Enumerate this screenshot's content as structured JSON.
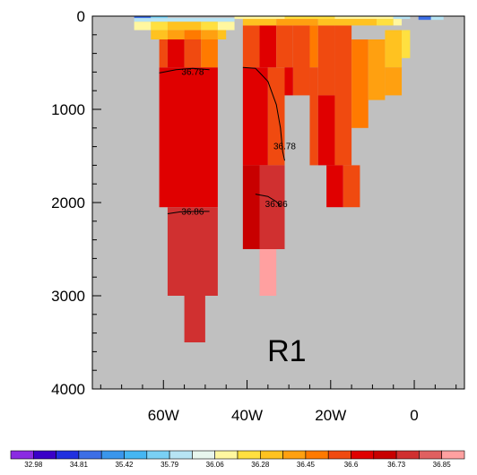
{
  "chart_data": {
    "type": "heatmap",
    "panel_label": "R1",
    "x_axis": {
      "range": [
        -77,
        12
      ],
      "ticks": [
        -60,
        -40,
        -20,
        0
      ],
      "tick_labels": [
        "60W",
        "40W",
        "20W",
        "0"
      ],
      "minor_step": 5
    },
    "y_axis": {
      "range": [
        0,
        4000
      ],
      "inverted": true,
      "ticks": [
        0,
        1000,
        2000,
        3000,
        4000
      ],
      "tick_labels": [
        "0",
        "1000",
        "2000",
        "3000",
        "4000"
      ],
      "minor_step": 200
    },
    "missing_color": "#c0c0c0",
    "gridlines": false,
    "colorbar": {
      "placement": "bottom",
      "colors": [
        "#8a2be2",
        "#3a00c8",
        "#2030e0",
        "#3c6ee6",
        "#3a96ec",
        "#45b6f2",
        "#7ad0f4",
        "#b7e4f4",
        "#e8f6ee",
        "#fff7a0",
        "#ffe040",
        "#ffc220",
        "#ffa010",
        "#ff7a00",
        "#f04a10",
        "#e00000",
        "#c80000",
        "#d03030",
        "#e06060",
        "#ffa0a0"
      ],
      "labels": [
        "32.98",
        "34.81",
        "35.42",
        "35.79",
        "36.06",
        "36.28",
        "36.45",
        "36.6",
        "36.73",
        "36.85"
      ]
    },
    "cells": [
      {
        "x0": -61,
        "x1": -47,
        "y0": 550,
        "y1": 2050,
        "color": "#e00000"
      },
      {
        "x0": -61,
        "x1": -59,
        "y0": 250,
        "y1": 550,
        "color": "#f04a10"
      },
      {
        "x0": -59,
        "x1": -55,
        "y0": 250,
        "y1": 550,
        "color": "#e00000"
      },
      {
        "x0": -55,
        "x1": -51,
        "y0": 250,
        "y1": 550,
        "color": "#f04a10"
      },
      {
        "x0": -51,
        "x1": -47,
        "y0": 250,
        "y1": 550,
        "color": "#ff7a00"
      },
      {
        "x0": -59,
        "x1": -47,
        "y0": 2050,
        "y1": 3000,
        "color": "#d03030"
      },
      {
        "x0": -55,
        "x1": -50,
        "y0": 3000,
        "y1": 3500,
        "color": "#d03030"
      },
      {
        "x0": -67,
        "x1": -43,
        "y0": 20,
        "y1": 60,
        "color": "#b7e4f4"
      },
      {
        "x0": -67,
        "x1": -63,
        "y0": 0,
        "y1": 20,
        "color": "#3c6ee6"
      },
      {
        "x0": -63,
        "x1": -59,
        "y0": 0,
        "y1": 20,
        "color": "#7ad0f4"
      },
      {
        "x0": -67,
        "x1": -63,
        "y0": 60,
        "y1": 150,
        "color": "#fff7a0"
      },
      {
        "x0": -63,
        "x1": -59,
        "y0": 60,
        "y1": 150,
        "color": "#ffe040"
      },
      {
        "x0": -59,
        "x1": -51,
        "y0": 60,
        "y1": 150,
        "color": "#ffc220"
      },
      {
        "x0": -51,
        "x1": -47,
        "y0": 60,
        "y1": 150,
        "color": "#ffe040"
      },
      {
        "x0": -47,
        "x1": -43,
        "y0": 60,
        "y1": 150,
        "color": "#fff7a0"
      },
      {
        "x0": -63,
        "x1": -59,
        "y0": 150,
        "y1": 250,
        "color": "#ffc220"
      },
      {
        "x0": -59,
        "x1": -55,
        "y0": 150,
        "y1": 250,
        "color": "#ffa010"
      },
      {
        "x0": -55,
        "x1": -51,
        "y0": 150,
        "y1": 250,
        "color": "#ff7a00"
      },
      {
        "x0": -51,
        "x1": -47,
        "y0": 150,
        "y1": 250,
        "color": "#ffa010"
      },
      {
        "x0": -47,
        "x1": -45,
        "y0": 150,
        "y1": 250,
        "color": "#ffc220"
      },
      {
        "x0": -41,
        "x1": -35,
        "y0": 550,
        "y1": 1600,
        "color": "#e00000"
      },
      {
        "x0": -35,
        "x1": -31,
        "y0": 550,
        "y1": 1600,
        "color": "#f04a10"
      },
      {
        "x0": -41,
        "x1": -37,
        "y0": 100,
        "y1": 550,
        "color": "#f04a10"
      },
      {
        "x0": -37,
        "x1": -33,
        "y0": 100,
        "y1": 550,
        "color": "#e00000"
      },
      {
        "x0": -33,
        "x1": -29,
        "y0": 100,
        "y1": 550,
        "color": "#f04a10"
      },
      {
        "x0": -29,
        "x1": -25,
        "y0": 100,
        "y1": 850,
        "color": "#f04a10"
      },
      {
        "x0": -25,
        "x1": -23,
        "y0": 100,
        "y1": 550,
        "color": "#ff7a00"
      },
      {
        "x0": -31,
        "x1": -29,
        "y0": 550,
        "y1": 850,
        "color": "#e00000"
      },
      {
        "x0": -37,
        "x1": -31,
        "y0": 1600,
        "y1": 2500,
        "color": "#d03030"
      },
      {
        "x0": -41,
        "x1": -37,
        "y0": 1600,
        "y1": 2500,
        "color": "#c80000"
      },
      {
        "x0": -37,
        "x1": -33,
        "y0": 2500,
        "y1": 3000,
        "color": "#ffa0a0"
      },
      {
        "x0": -25,
        "x1": -23,
        "y0": 550,
        "y1": 1600,
        "color": "#f04a10"
      },
      {
        "x0": -23,
        "x1": -19,
        "y0": 100,
        "y1": 850,
        "color": "#f04a10"
      },
      {
        "x0": -23,
        "x1": -19,
        "y0": 850,
        "y1": 1600,
        "color": "#e00000"
      },
      {
        "x0": -19,
        "x1": -15,
        "y0": 100,
        "y1": 1600,
        "color": "#f04a10"
      },
      {
        "x0": -15,
        "x1": -11,
        "y0": 250,
        "y1": 1200,
        "color": "#ff7a00"
      },
      {
        "x0": -11,
        "x1": -7,
        "y0": 250,
        "y1": 900,
        "color": "#ffa010"
      },
      {
        "x0": -7,
        "x1": -3,
        "y0": 150,
        "y1": 550,
        "color": "#ffc220"
      },
      {
        "x0": -7,
        "x1": -3,
        "y0": 550,
        "y1": 850,
        "color": "#ffa010"
      },
      {
        "x0": -3,
        "x1": -1,
        "y0": 150,
        "y1": 450,
        "color": "#ffe040"
      },
      {
        "x0": -21,
        "x1": -17,
        "y0": 1600,
        "y1": 2050,
        "color": "#e00000"
      },
      {
        "x0": -17,
        "x1": -13,
        "y0": 1600,
        "y1": 2050,
        "color": "#f04a10"
      },
      {
        "x0": -43,
        "x1": -31,
        "y0": 0,
        "y1": 30,
        "color": "#fff7a0"
      },
      {
        "x0": -31,
        "x1": -19,
        "y0": 0,
        "y1": 30,
        "color": "#ffe040"
      },
      {
        "x0": -19,
        "x1": -5,
        "y0": 0,
        "y1": 30,
        "color": "#fff7a0"
      },
      {
        "x0": -5,
        "x1": -1,
        "y0": 0,
        "y1": 30,
        "color": "#b7e4f4"
      },
      {
        "x0": -41,
        "x1": -33,
        "y0": 30,
        "y1": 100,
        "color": "#ffc220"
      },
      {
        "x0": -33,
        "x1": -23,
        "y0": 30,
        "y1": 100,
        "color": "#ffa010"
      },
      {
        "x0": -23,
        "x1": -9,
        "y0": 30,
        "y1": 100,
        "color": "#ffc220"
      },
      {
        "x0": -9,
        "x1": -5,
        "y0": 30,
        "y1": 100,
        "color": "#ffe040"
      },
      {
        "x0": -5,
        "x1": -3,
        "y0": 30,
        "y1": 100,
        "color": "#fff7a0"
      },
      {
        "x0": 1,
        "x1": 4,
        "y0": 0,
        "y1": 40,
        "color": "#3c6ee6"
      },
      {
        "x0": 4,
        "x1": 7,
        "y0": 0,
        "y1": 40,
        "color": "#b7e4f4"
      }
    ],
    "contours": [
      {
        "label": "36.78",
        "label_at": [
          -53,
          600
        ],
        "points": [
          [
            -61,
            610
          ],
          [
            -57,
            575
          ],
          [
            -53,
            560
          ],
          [
            -49,
            575
          ]
        ]
      },
      {
        "label": "36.78",
        "label_at": [
          -31,
          1400
        ],
        "points": [
          [
            -41,
            550
          ],
          [
            -38,
            560
          ],
          [
            -35,
            700
          ],
          [
            -33,
            950
          ],
          [
            -32,
            1200
          ],
          [
            -31.5,
            1450
          ],
          [
            -31,
            1550
          ]
        ]
      },
      {
        "label": "36.86",
        "label_at": [
          -53,
          2100
        ],
        "points": [
          [
            -59,
            2120
          ],
          [
            -56,
            2100
          ],
          [
            -52,
            2095
          ],
          [
            -49,
            2095
          ]
        ]
      },
      {
        "label": "36.86",
        "label_at": [
          -33,
          2020
        ],
        "points": [
          [
            -38,
            1910
          ],
          [
            -35,
            1935
          ],
          [
            -33,
            1990
          ],
          [
            -32,
            2040
          ]
        ]
      }
    ]
  }
}
